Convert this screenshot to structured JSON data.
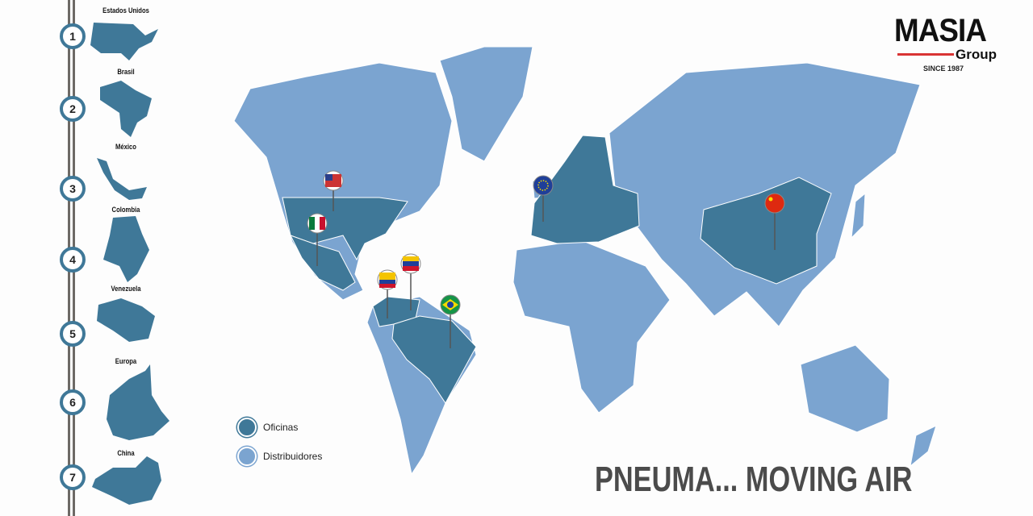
{
  "colors": {
    "office": "#3f7898",
    "distributor": "#7ba4d0",
    "rail": "#6d6a66",
    "accent_red": "#d93434"
  },
  "timeline": [
    {
      "number": "1",
      "country": "Estados Unidos"
    },
    {
      "number": "2",
      "country": "Brasil"
    },
    {
      "number": "3",
      "country": "México"
    },
    {
      "number": "4",
      "country": "Colombia"
    },
    {
      "number": "5",
      "country": "Venezuela"
    },
    {
      "number": "6",
      "country": "Europa"
    },
    {
      "number": "7",
      "country": "China"
    }
  ],
  "logo": {
    "name": "MASIA",
    "sub": "Group",
    "since": "SINCE 1987"
  },
  "legend": {
    "offices": "Oficinas",
    "distributors": "Distribuidores"
  },
  "slogan": "PNEUMA... MOVING AIR",
  "pins": [
    {
      "flag": "usa-flag"
    },
    {
      "flag": "mexico-flag"
    },
    {
      "flag": "venezuela-flag"
    },
    {
      "flag": "colombia-flag"
    },
    {
      "flag": "brazil-flag"
    },
    {
      "flag": "eu-flag"
    },
    {
      "flag": "china-flag"
    }
  ]
}
